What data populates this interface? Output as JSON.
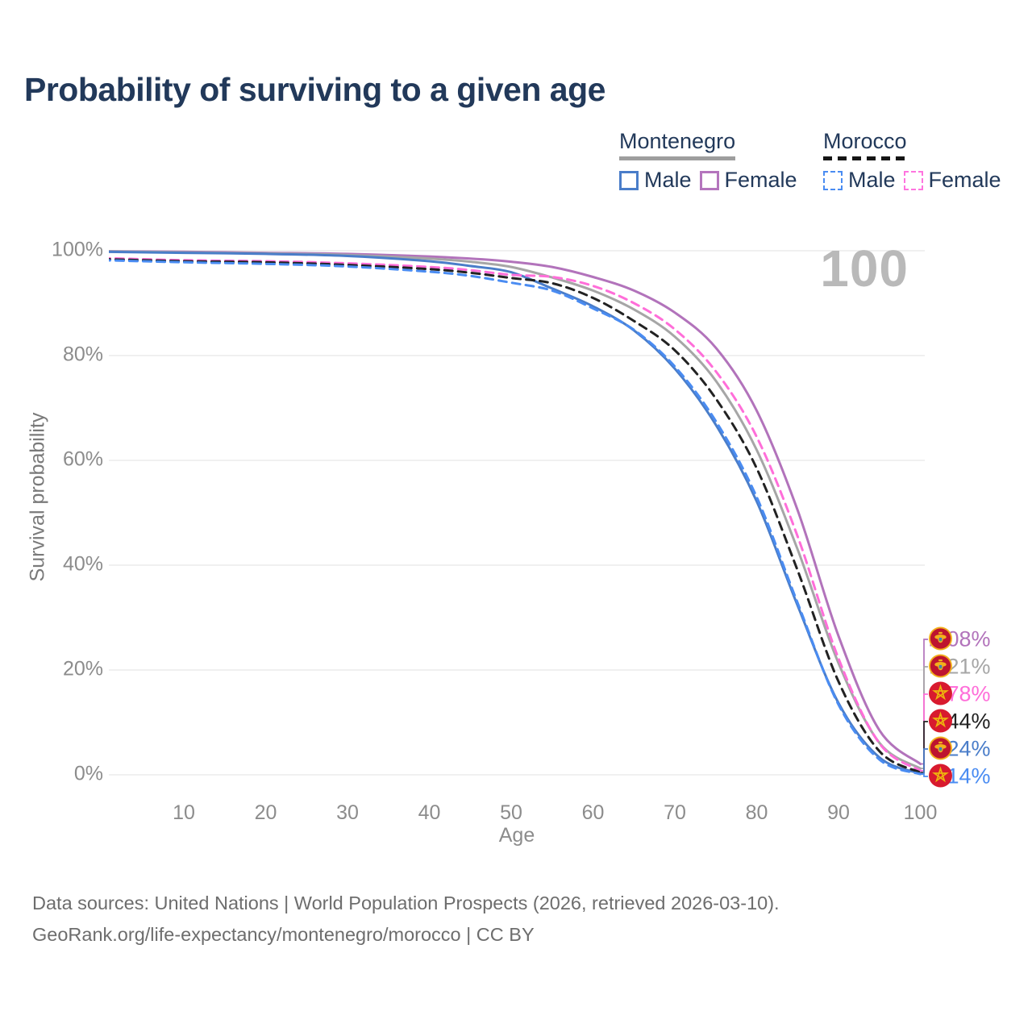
{
  "title": "Probability of surviving to a given age",
  "watermark_age": "100",
  "legend": {
    "groups": [
      {
        "id": "montenegro",
        "label": "Montenegro",
        "line_style": "solid",
        "line_color": "#9e9e9e",
        "items": [
          {
            "id": "montenegro-male",
            "label": "Male",
            "color": "#4a7dc9",
            "style": "solid"
          },
          {
            "id": "montenegro-female",
            "label": "Female",
            "color": "#b475bd",
            "style": "solid"
          }
        ]
      },
      {
        "id": "morocco",
        "label": "Morocco",
        "line_style": "dashed",
        "line_color": "#151515",
        "items": [
          {
            "id": "morocco-male",
            "label": "Male",
            "color": "#4a8cf2",
            "style": "dashed"
          },
          {
            "id": "morocco-female",
            "label": "Female",
            "color": "#ff74df",
            "style": "dashed"
          }
        ]
      }
    ]
  },
  "chart_data": {
    "type": "line",
    "title": "Probability of surviving to a given age",
    "xlabel": "Age",
    "ylabel": "Survival probability",
    "xlim": [
      0,
      100
    ],
    "ylim": [
      0,
      100
    ],
    "grid": "horizontal",
    "legend_position": "top-right",
    "xticks": [
      10,
      20,
      30,
      40,
      50,
      60,
      70,
      80,
      90,
      100
    ],
    "yticks": [
      {
        "value": 0,
        "label": "0%"
      },
      {
        "value": 20,
        "label": "20%"
      },
      {
        "value": 40,
        "label": "40%"
      },
      {
        "value": 60,
        "label": "60%"
      },
      {
        "value": 80,
        "label": "80%"
      },
      {
        "value": 100,
        "label": "100%"
      }
    ],
    "x_ages": [
      0,
      10,
      20,
      30,
      40,
      45,
      50,
      55,
      60,
      65,
      70,
      75,
      80,
      85,
      90,
      95,
      100
    ],
    "series": [
      {
        "name": "Montenegro Female",
        "country": "Montenegro",
        "sex": "Female",
        "style": "solid",
        "color": "#b273bb",
        "flag": "montenegro",
        "end_label": "2.08%",
        "values": [
          99.9,
          99.8,
          99.6,
          99.4,
          98.9,
          98.5,
          97.9,
          96.9,
          95.0,
          92.4,
          88.2,
          81.5,
          69.5,
          50.5,
          26.5,
          8.5,
          2.08
        ]
      },
      {
        "name": "Montenegro Both sexes",
        "country": "Montenegro",
        "sex": "Both",
        "style": "solid",
        "color": "#a6a6a6",
        "flag": "montenegro",
        "end_label": "1.21%",
        "values": [
          99.9,
          99.7,
          99.5,
          99.2,
          98.5,
          97.9,
          96.9,
          94.9,
          92.4,
          88.8,
          83.6,
          75.2,
          62.0,
          43.0,
          21.3,
          6.1,
          1.21
        ]
      },
      {
        "name": "Morocco Female",
        "country": "Morocco",
        "sex": "Female",
        "style": "dashed",
        "color": "#ff6ed9",
        "flag": "morocco",
        "end_label": "0.78%",
        "values": [
          98.6,
          98.2,
          98.0,
          97.6,
          96.9,
          96.3,
          95.4,
          95.0,
          93.3,
          90.0,
          85.0,
          77.0,
          64.5,
          45.5,
          22.2,
          6.0,
          0.78
        ]
      },
      {
        "name": "Morocco Both sexes",
        "country": "Morocco",
        "sex": "Both",
        "style": "dashed",
        "color": "#222222",
        "flag": "morocco",
        "end_label": "0.44%",
        "values": [
          98.4,
          98.0,
          97.8,
          97.3,
          96.5,
          95.8,
          94.8,
          93.8,
          91.0,
          86.6,
          81.0,
          71.8,
          58.5,
          39.0,
          17.8,
          4.5,
          0.44
        ]
      },
      {
        "name": "Montenegro Male",
        "country": "Montenegro",
        "sex": "Male",
        "style": "solid",
        "color": "#4a7dc9",
        "flag": "montenegro",
        "end_label": "0.24%",
        "values": [
          99.8,
          99.6,
          99.4,
          99.0,
          98.0,
          97.1,
          95.9,
          92.8,
          89.4,
          84.8,
          77.5,
          66.8,
          52.2,
          32.3,
          13.7,
          3.3,
          0.24
        ]
      },
      {
        "name": "Morocco Male",
        "country": "Morocco",
        "sex": "Male",
        "style": "dashed",
        "color": "#4a8cf2",
        "flag": "morocco",
        "end_label": "0.14%",
        "values": [
          98.2,
          97.8,
          97.5,
          97.0,
          96.0,
          95.2,
          93.9,
          92.4,
          89.0,
          84.9,
          77.9,
          67.5,
          53.0,
          32.8,
          13.4,
          2.9,
          0.14
        ]
      }
    ]
  },
  "footer": {
    "line1": "Data sources: United Nations | World Population Prospects (2026, retrieved 2026-03-10).",
    "line2": "GeoRank.org/life-expectancy/montenegro/morocco | CC BY"
  }
}
